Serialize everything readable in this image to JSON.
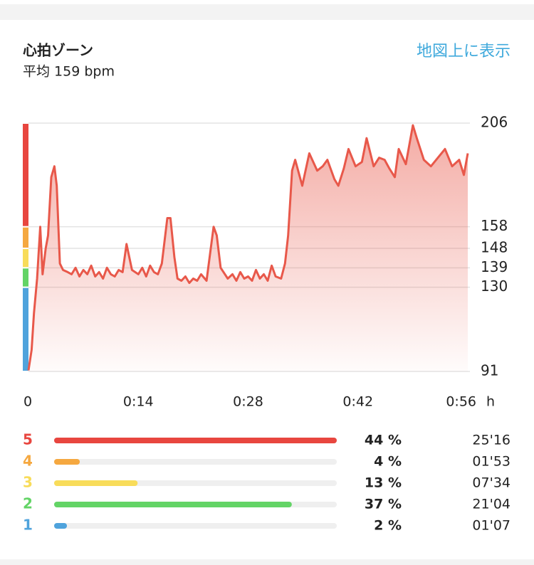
{
  "header": {
    "title": "心拍ゾーン",
    "subtitle": "平均 159 bpm",
    "link": "地図上に表示"
  },
  "chart_data": {
    "type": "line",
    "color": "#e8584a",
    "grid": true,
    "x_unit": "h",
    "x": [
      0,
      0.4,
      0.7,
      1.1,
      1.5,
      1.8,
      2.2,
      2.5,
      2.9,
      3.3,
      3.6,
      4.0,
      4.4,
      5,
      5.5,
      6,
      6.5,
      7,
      7.5,
      8,
      8.5,
      9,
      9.5,
      10,
      10.5,
      11,
      11.5,
      12,
      12.5,
      13.2,
      14,
      14.5,
      15,
      15.5,
      16,
      16.5,
      17,
      17.7,
      18.1,
      18.6,
      19,
      19.5,
      20,
      20.5,
      21,
      21.5,
      22,
      22.7,
      23.6,
      24,
      24.5,
      25.4,
      26,
      26.5,
      27,
      27.5,
      28,
      28.5,
      29,
      29.5,
      30,
      30.5,
      31,
      31.5,
      32.2,
      32.7,
      33.1,
      33.6,
      34,
      34.9,
      35.8,
      36.8,
      37.5,
      38.1,
      39,
      39.5,
      40.2,
      40.8,
      41.7,
      42.5,
      43.1,
      44,
      44.7,
      45.4,
      46,
      46.7,
      47.2,
      48.1,
      49,
      49.5,
      50.4,
      51.3,
      52.2,
      53.1,
      54,
      54.9,
      55.5,
      56
    ],
    "values": [
      91.5,
      101,
      118,
      134,
      158,
      136,
      148,
      154,
      181,
      186,
      177,
      141,
      138,
      137,
      136,
      139,
      135,
      138,
      136,
      140,
      135,
      137,
      134,
      139,
      136,
      135,
      138,
      137,
      150,
      138,
      136,
      139,
      135,
      140,
      137,
      136,
      141,
      162,
      162,
      144,
      134,
      133,
      135,
      132,
      134,
      133,
      136,
      133,
      158,
      154,
      139,
      134,
      136,
      133,
      137,
      134,
      135,
      133,
      138,
      134,
      136,
      133,
      140,
      135,
      134,
      141,
      154,
      184,
      189,
      177,
      192,
      184,
      186,
      189,
      180,
      177,
      185,
      194,
      186,
      188,
      199,
      186,
      190,
      189,
      185,
      181,
      194,
      187,
      205,
      199,
      189,
      186,
      190,
      194,
      186,
      189,
      182,
      192
    ],
    "xlim": [
      0,
      56
    ],
    "xticks": [
      0,
      {
        "value": 14,
        "label": "0:14"
      },
      {
        "value": 28,
        "label": "0:28"
      },
      {
        "value": 42,
        "label": "0:42"
      },
      {
        "value": 56,
        "label": "0:56"
      }
    ],
    "ylim": [
      91,
      206
    ],
    "yticks": [
      91,
      130,
      139,
      148,
      158,
      206
    ]
  },
  "zones": [
    {
      "zone": 5,
      "percent": 44,
      "percent_label": "44 %",
      "time": "25'16",
      "color": "#e8463f"
    },
    {
      "zone": 4,
      "percent": 4,
      "percent_label": "4 %",
      "time": "01'53",
      "color": "#f5a840"
    },
    {
      "zone": 3,
      "percent": 13,
      "percent_label": "13 %",
      "time": "07'34",
      "color": "#f8dc5a"
    },
    {
      "zone": 2,
      "percent": 37,
      "percent_label": "37 %",
      "time": "21'04",
      "color": "#63d466"
    },
    {
      "zone": 1,
      "percent": 2,
      "percent_label": "2 %",
      "time": "01'07",
      "color": "#4fa3dc"
    }
  ]
}
